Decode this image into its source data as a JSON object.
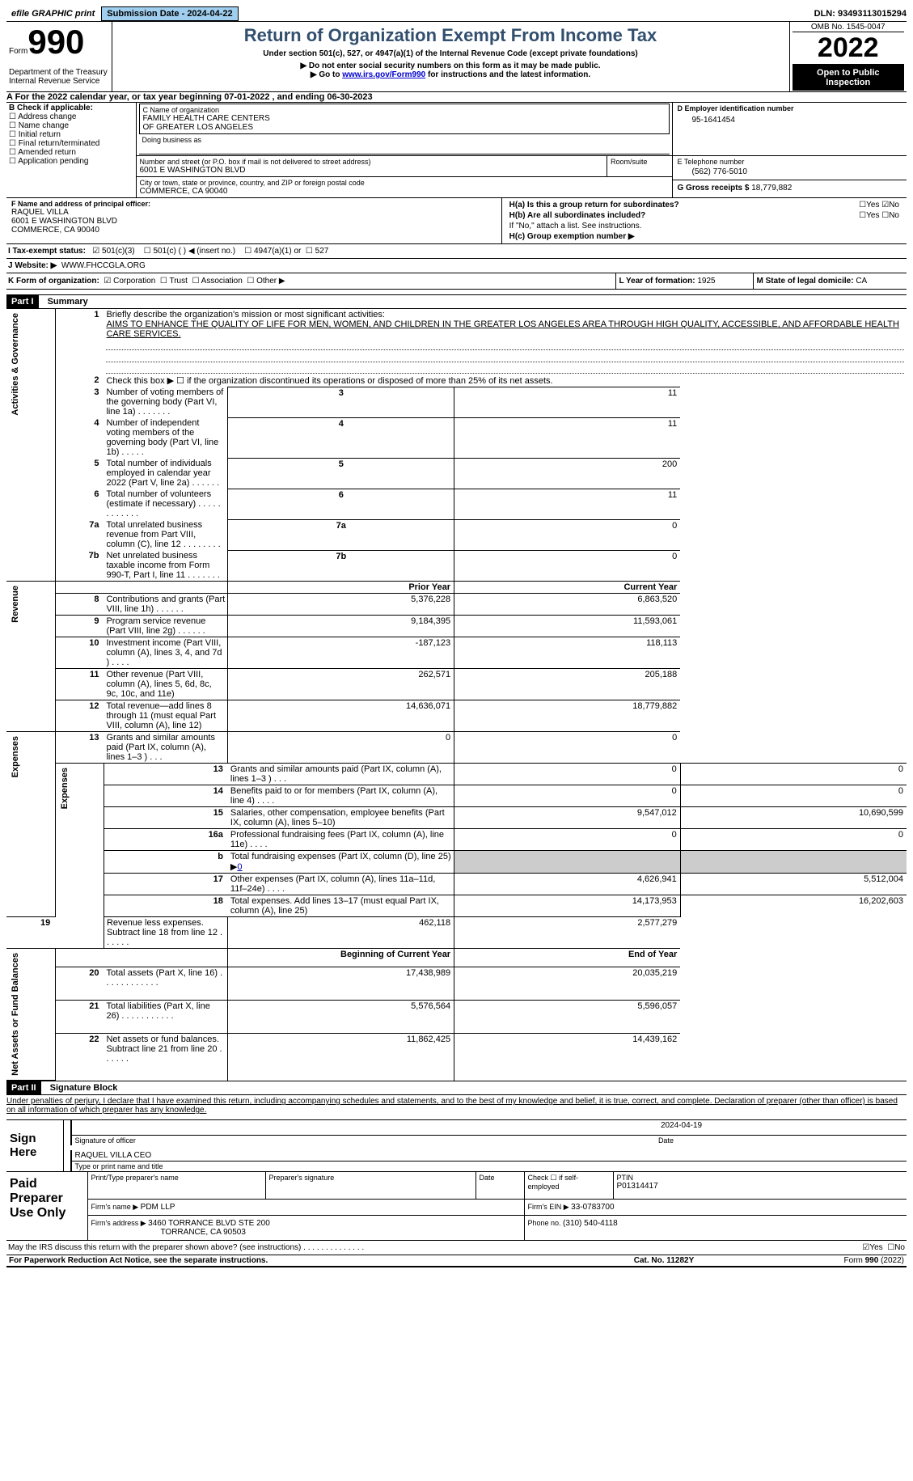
{
  "topbar": {
    "efile": "efile GRAPHIC print",
    "submission": "Submission Date - 2024-04-22",
    "dln": "DLN: 93493113015294"
  },
  "header": {
    "form_label": "Form",
    "form_num": "990",
    "dept1": "Department of the Treasury",
    "dept2": "Internal Revenue Service",
    "title": "Return of Organization Exempt From Income Tax",
    "subtitle": "Under section 501(c), 527, or 4947(a)(1) of the Internal Revenue Code (except private foundations)",
    "note1": "▶ Do not enter social security numbers on this form as it may be made public.",
    "note2_pre": "▶ Go to ",
    "note2_link": "www.irs.gov/Form990",
    "note2_post": " for instructions and the latest information.",
    "omb": "OMB No. 1545-0047",
    "year": "2022",
    "open": "Open to Public Inspection"
  },
  "line_a": "A  For the 2022 calendar year, or tax year beginning 07-01-2022    , and ending 06-30-2023",
  "box_b": {
    "label": "B Check if applicable:",
    "items": [
      "Address change",
      "Name change",
      "Initial return",
      "Final return/terminated",
      "Amended return",
      "Application pending"
    ]
  },
  "box_c": {
    "label": "C Name of organization",
    "name1": "FAMILY HEALTH CARE CENTERS",
    "name2": "OF GREATER LOS ANGELES",
    "dba_label": "Doing business as",
    "street_label": "Number and street (or P.O. box if mail is not delivered to street address)",
    "room_label": "Room/suite",
    "street": "6001 E WASHINGTON BLVD",
    "city_label": "City or town, state or province, country, and ZIP or foreign postal code",
    "city": "COMMERCE, CA  90040"
  },
  "box_d": {
    "label": "D Employer identification number",
    "value": "95-1641454"
  },
  "box_e": {
    "label": "E Telephone number",
    "value": "(562) 776-5010"
  },
  "box_g": {
    "label_pre": "G Gross receipts $ ",
    "value": "18,779,882"
  },
  "box_f": {
    "label": "F Name and address of principal officer:",
    "l1": "RAQUEL VILLA",
    "l2": "6001 E WASHINGTON BLVD",
    "l3": "COMMERCE, CA  90040"
  },
  "box_h": {
    "ha": "H(a)  Is this a group return for subordinates?",
    "hb": "H(b)  Are all subordinates included?",
    "hb_note": "If \"No,\" attach a list. See instructions.",
    "hc": "H(c)  Group exemption number ▶",
    "yes": "Yes",
    "no": "No"
  },
  "line_i": {
    "label": "I    Tax-exempt status:",
    "a": "501(c)(3)",
    "b": "501(c) (  ) ◀ (insert no.)",
    "c": "4947(a)(1) or",
    "d": "527"
  },
  "line_j": {
    "label": "J    Website: ▶",
    "value": "WWW.FHCCGLA.ORG"
  },
  "line_k": {
    "label": "K Form of organization:",
    "a": "Corporation",
    "b": "Trust",
    "c": "Association",
    "d": "Other ▶"
  },
  "line_l": {
    "label": "L Year of formation: ",
    "value": "1925"
  },
  "line_m": {
    "label": "M State of legal domicile: ",
    "value": "CA"
  },
  "part1": {
    "hdr_num": "Part I",
    "hdr_txt": "Summary",
    "side_activities": "Activities & Governance",
    "side_revenue": "Revenue",
    "side_expenses": "Expenses",
    "side_netassets": "Net Assets or Fund Balances",
    "r1_label": "Briefly describe the organization's mission or most significant activities:",
    "r1_text": "AIMS TO ENHANCE THE QUALITY OF LIFE FOR MEN, WOMEN, AND CHILDREN IN THE GREATER LOS ANGELES AREA THROUGH HIGH QUALITY, ACCESSIBLE, AND AFFORDABLE HEALTH CARE SERVICES.",
    "r2": "Check this box ▶ ☐  if the organization discontinued its operations or disposed of more than 25% of its net assets.",
    "rows_ag": [
      {
        "n": "3",
        "t": "Number of voting members of the governing body (Part VI, line 1a)   .    .    .    .    .    .    .",
        "v": "11"
      },
      {
        "n": "4",
        "t": "Number of independent voting members of the governing body (Part VI, line 1b)   .    .    .    .    .",
        "v": "11"
      },
      {
        "n": "5",
        "t": "Total number of individuals employed in calendar year 2022 (Part V, line 2a)   .    .    .    .    .    .",
        "v": "200"
      },
      {
        "n": "6",
        "t": "Total number of volunteers (estimate if necessary)    .    .    .    .    .    .    .    .    .    .    .    .",
        "v": "11"
      },
      {
        "n": "7a",
        "t": "Total unrelated business revenue from Part VIII, column (C), line 12   .    .    .    .    .    .    .    .",
        "v": "0"
      },
      {
        "n": "7b",
        "t": "Net unrelated business taxable income from Form 990-T, Part I, line 11   .    .    .    .    .    .    .",
        "v": "0"
      }
    ],
    "col_prior": "Prior Year",
    "col_current": "Current Year",
    "rows_rev": [
      {
        "n": "8",
        "t": "Contributions and grants (Part VIII, line 1h)   .    .    .    .    .    .",
        "p": "5,376,228",
        "c": "6,863,520"
      },
      {
        "n": "9",
        "t": "Program service revenue (Part VIII, line 2g)   .    .    .    .    .    .",
        "p": "9,184,395",
        "c": "11,593,061"
      },
      {
        "n": "10",
        "t": "Investment income (Part VIII, column (A), lines 3, 4, and 7d )   .    .    .    .",
        "p": "-187,123",
        "c": "118,113"
      },
      {
        "n": "11",
        "t": "Other revenue (Part VIII, column (A), lines 5, 6d, 8c, 9c, 10c, and 11e)",
        "p": "262,571",
        "c": "205,188"
      },
      {
        "n": "12",
        "t": "Total revenue—add lines 8 through 11 (must equal Part VIII, column (A), line 12)",
        "p": "14,636,071",
        "c": "18,779,882"
      }
    ],
    "rows_exp": [
      {
        "n": "13",
        "t": "Grants and similar amounts paid (Part IX, column (A), lines 1–3 )   .    .    .",
        "p": "0",
        "c": "0"
      },
      {
        "n": "14",
        "t": "Benefits paid to or for members (Part IX, column (A), line 4)   .    .    .    .",
        "p": "0",
        "c": "0"
      },
      {
        "n": "15",
        "t": "Salaries, other compensation, employee benefits (Part IX, column (A), lines 5–10)",
        "p": "9,547,012",
        "c": "10,690,599"
      },
      {
        "n": "16a",
        "t": "Professional fundraising fees (Part IX, column (A), line 11e)   .    .    .    .",
        "p": "0",
        "c": "0"
      },
      {
        "n": "b",
        "t": "Total fundraising expenses (Part IX, column (D), line 25) ▶",
        "v": "0",
        "gray": true
      },
      {
        "n": "17",
        "t": "Other expenses (Part IX, column (A), lines 11a–11d, 11f–24e)   .    .    .    .",
        "p": "4,626,941",
        "c": "5,512,004"
      },
      {
        "n": "18",
        "t": "Total expenses. Add lines 13–17 (must equal Part IX, column (A), line 25)",
        "p": "14,173,953",
        "c": "16,202,603"
      },
      {
        "n": "19",
        "t": "Revenue less expenses. Subtract line 18 from line 12   .    .    .    .    .    .",
        "p": "462,118",
        "c": "2,577,279"
      }
    ],
    "col_begin": "Beginning of Current Year",
    "col_end": "End of Year",
    "rows_net": [
      {
        "n": "20",
        "t": "Total assets (Part X, line 16)   .    .    .    .    .    .    .    .    .    .    .    .",
        "p": "17,438,989",
        "c": "20,035,219"
      },
      {
        "n": "21",
        "t": "Total liabilities (Part X, line 26)   .    .    .    .    .    .    .    .    .    .    .",
        "p": "5,576,564",
        "c": "5,596,057"
      },
      {
        "n": "22",
        "t": "Net assets or fund balances. Subtract line 21 from line 20   .    .    .    .    .    .",
        "p": "11,862,425",
        "c": "14,439,162"
      }
    ]
  },
  "part2": {
    "hdr_num": "Part II",
    "hdr_txt": "Signature Block",
    "decl": "Under penalties of perjury, I declare that I have examined this return, including accompanying schedules and statements, and to the best of my knowledge and belief, it is true, correct, and complete. Declaration of preparer (other than officer) is based on all information of which preparer has any knowledge.",
    "sign_here": "Sign Here",
    "sig_officer": "Signature of officer",
    "sig_date": "Date",
    "sig_dateval": "2024-04-19",
    "name_title": "RAQUEL VILLA  CEO",
    "name_title_lbl": "Type or print name and title",
    "paid": "Paid Preparer Use Only",
    "prep_name_lbl": "Print/Type preparer's name",
    "prep_sig_lbl": "Preparer's signature",
    "date_lbl": "Date",
    "check_self": "Check ☐ if self-employed",
    "ptin_lbl": "PTIN",
    "ptin": "P01314417",
    "firm_name_lbl": "Firm's name     ▶ ",
    "firm_name": "PDM LLP",
    "firm_ein_lbl": "Firm's EIN ▶ ",
    "firm_ein": "33-0783700",
    "firm_addr_lbl": "Firm's address ▶ ",
    "firm_addr1": "3460 TORRANCE BLVD STE 200",
    "firm_addr2": "TORRANCE, CA  90503",
    "phone_lbl": "Phone no. ",
    "phone": "(310) 540-4118",
    "discuss": "May the IRS discuss this return with the preparer shown above? (see instructions)   .    .    .    .    .    .    .    .    .    .    .    .    .    .",
    "discuss_yes": "Yes",
    "discuss_no": "No"
  },
  "footer": {
    "left": "For Paperwork Reduction Act Notice, see the separate instructions.",
    "mid": "Cat. No. 11282Y",
    "right": "Form 990 (2022)"
  }
}
